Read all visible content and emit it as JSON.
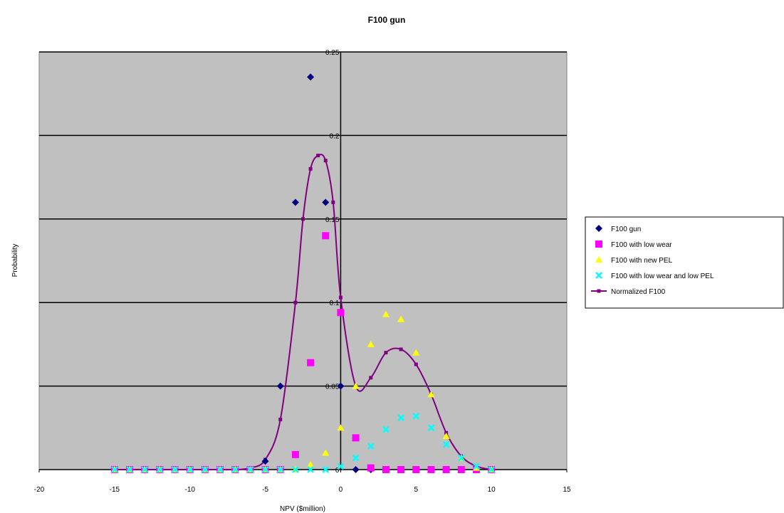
{
  "chart_data": {
    "type": "scatter",
    "title": "F100 gun",
    "xlabel": "NPV ($million)",
    "ylabel": "Probability",
    "xlim": [
      -20,
      15
    ],
    "ylim": [
      0,
      0.25
    ],
    "x_ticks": [
      -20,
      -15,
      -10,
      -5,
      0,
      5,
      10,
      15
    ],
    "y_ticks": [
      0,
      0.05,
      0.1,
      0.15,
      0.2,
      0.25
    ],
    "y_tick_labels": [
      "0",
      "0.05",
      "0.1",
      "0.15",
      "0.2",
      "0.25"
    ],
    "plot_background": "#c0c0c0",
    "grid": "horizontal",
    "legend_position": "right",
    "series": [
      {
        "name": "F100 gun",
        "marker": "diamond",
        "color": "#000080",
        "x": [
          -15,
          -14,
          -13,
          -12,
          -11,
          -10,
          -9,
          -8,
          -7,
          -6,
          -5,
          -4,
          -3,
          -2,
          -1,
          0,
          1,
          2,
          3,
          4,
          5,
          6,
          7,
          8,
          9,
          10
        ],
        "y": [
          0,
          0,
          0,
          0,
          0,
          0,
          0,
          0,
          0,
          0,
          0.005,
          0.05,
          0.16,
          0.235,
          0.16,
          0.05,
          0,
          0,
          0,
          0,
          0,
          0,
          0,
          0,
          0,
          0
        ]
      },
      {
        "name": "F100 with low wear",
        "marker": "square",
        "color": "#ff00ff",
        "x": [
          -15,
          -14,
          -13,
          -12,
          -11,
          -10,
          -9,
          -8,
          -7,
          -6,
          -5,
          -4,
          -3,
          -2,
          -1,
          0,
          1,
          2,
          3,
          4,
          5,
          6,
          7,
          8,
          9,
          10
        ],
        "y": [
          0,
          0,
          0,
          0,
          0,
          0,
          0,
          0,
          0,
          0,
          0,
          0,
          0.009,
          0.064,
          0.14,
          0.094,
          0.019,
          0.001,
          0,
          0,
          0,
          0,
          0,
          0,
          0,
          0
        ]
      },
      {
        "name": "F100 with new PEL",
        "marker": "triangle",
        "color": "#ffff00",
        "x": [
          -15,
          -14,
          -13,
          -12,
          -11,
          -10,
          -9,
          -8,
          -7,
          -6,
          -5,
          -4,
          -3,
          -2,
          -1,
          0,
          1,
          2,
          3,
          4,
          5,
          6,
          7,
          8,
          9,
          10
        ],
        "y": [
          0,
          0,
          0,
          0,
          0,
          0,
          0,
          0,
          0,
          0,
          0,
          0,
          0,
          0.003,
          0.01,
          0.025,
          0.05,
          0.075,
          0.093,
          0.09,
          0.07,
          0.045,
          0.02,
          0.007,
          0.001,
          0
        ]
      },
      {
        "name": "F100 with low wear and low PEL",
        "marker": "x",
        "color": "#00ffff",
        "x": [
          -15,
          -14,
          -13,
          -12,
          -11,
          -10,
          -9,
          -8,
          -7,
          -6,
          -5,
          -4,
          -3,
          -2,
          -1,
          0,
          1,
          2,
          3,
          4,
          5,
          6,
          7,
          8,
          9,
          10
        ],
        "y": [
          0,
          0,
          0,
          0,
          0,
          0,
          0,
          0,
          0,
          0,
          0,
          0,
          0,
          0,
          0,
          0.002,
          0.007,
          0.014,
          0.024,
          0.031,
          0.032,
          0.025,
          0.015,
          0.007,
          0.002,
          0
        ]
      },
      {
        "name": "Normalized F100",
        "marker": "small-square-line",
        "color": "#800080",
        "smooth": true,
        "x": [
          -15,
          -14,
          -13,
          -12,
          -11,
          -10,
          -9,
          -8,
          -7,
          -6,
          -5,
          -4,
          -3,
          -2.5,
          -2,
          -1.5,
          -1,
          -0.5,
          0,
          1,
          2,
          3,
          4,
          5,
          6,
          7,
          8,
          9,
          10
        ],
        "y": [
          0,
          0,
          0,
          0,
          0,
          0,
          0,
          0,
          0,
          0.001,
          0.006,
          0.03,
          0.1,
          0.15,
          0.18,
          0.188,
          0.185,
          0.16,
          0.103,
          0.05,
          0.055,
          0.07,
          0.072,
          0.063,
          0.045,
          0.022,
          0.008,
          0.002,
          0
        ]
      }
    ]
  }
}
